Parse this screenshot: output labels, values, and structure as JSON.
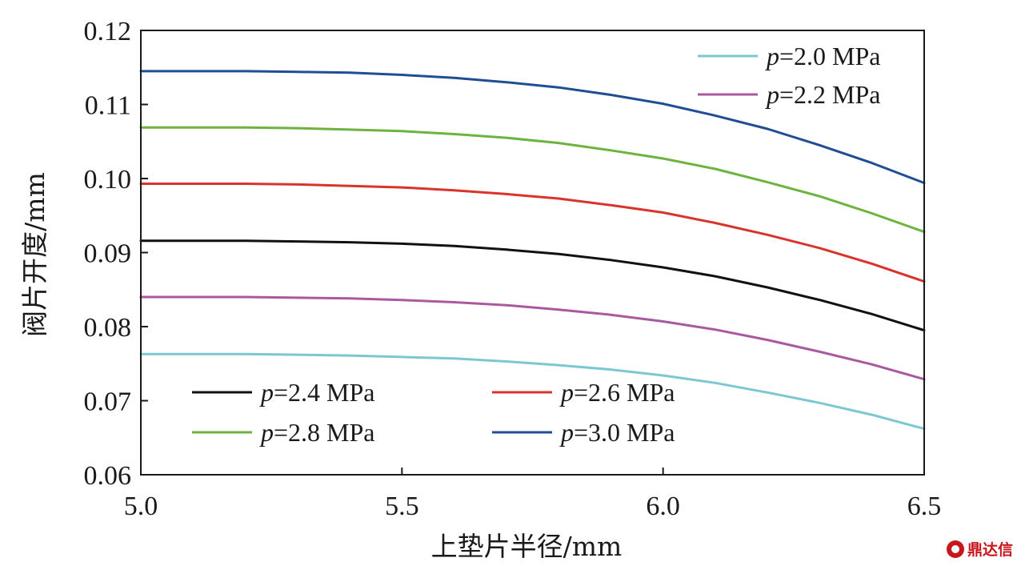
{
  "chart_data": {
    "type": "line",
    "xlabel": "上垫片半径/mm",
    "ylabel": "阀片开度/mm",
    "xlim": [
      5.0,
      6.5
    ],
    "ylim": [
      0.06,
      0.12
    ],
    "xticks": [
      "5.0",
      "5.5",
      "6.0",
      "6.5"
    ],
    "yticks": [
      "0.06",
      "0.07",
      "0.08",
      "0.09",
      "0.10",
      "0.11",
      "0.12"
    ],
    "x": [
      5.0,
      5.1,
      5.2,
      5.3,
      5.4,
      5.5,
      5.6,
      5.7,
      5.8,
      5.9,
      6.0,
      6.1,
      6.2,
      6.3,
      6.4,
      6.5
    ],
    "series": [
      {
        "name": "p=2.0 MPa",
        "name_var": "p",
        "name_rest": "=2.0 MPa",
        "color": "#7cc8d2",
        "values": [
          0.0763,
          0.0763,
          0.0763,
          0.0762,
          0.0761,
          0.0759,
          0.0757,
          0.0753,
          0.0748,
          0.0742,
          0.0734,
          0.0724,
          0.0711,
          0.0697,
          0.0681,
          0.0662
        ]
      },
      {
        "name": "p=2.2 MPa",
        "name_var": "p",
        "name_rest": "=2.2 MPa",
        "color": "#a9599e",
        "values": [
          0.084,
          0.084,
          0.084,
          0.0839,
          0.0838,
          0.0836,
          0.0833,
          0.0829,
          0.0823,
          0.0816,
          0.0807,
          0.0796,
          0.0782,
          0.0766,
          0.0749,
          0.0729
        ]
      },
      {
        "name": "p=2.4 MPa",
        "name_var": "p",
        "name_rest": "=2.4 MPa",
        "color": "#111111",
        "values": [
          0.0916,
          0.0916,
          0.0916,
          0.0915,
          0.0914,
          0.0912,
          0.0909,
          0.0904,
          0.0898,
          0.089,
          0.088,
          0.0868,
          0.0853,
          0.0836,
          0.0817,
          0.0795
        ]
      },
      {
        "name": "p=2.6 MPa",
        "name_var": "p",
        "name_rest": "=2.6 MPa",
        "color": "#d9342b",
        "values": [
          0.0993,
          0.0993,
          0.0993,
          0.0992,
          0.099,
          0.0988,
          0.0984,
          0.0979,
          0.0973,
          0.0964,
          0.0954,
          0.094,
          0.0924,
          0.0906,
          0.0885,
          0.0861
        ]
      },
      {
        "name": "p=2.8 MPa",
        "name_var": "p",
        "name_rest": "=2.8 MPa",
        "color": "#6cb33f",
        "values": [
          0.1069,
          0.1069,
          0.1069,
          0.1068,
          0.1066,
          0.1064,
          0.106,
          0.1055,
          0.1048,
          0.1038,
          0.1027,
          0.1013,
          0.0995,
          0.0976,
          0.0953,
          0.0928
        ]
      },
      {
        "name": "p=3.0 MPa",
        "name_var": "p",
        "name_rest": "=3.0 MPa",
        "color": "#1f4e94",
        "values": [
          0.1145,
          0.1145,
          0.1145,
          0.1144,
          0.1143,
          0.114,
          0.1136,
          0.113,
          0.1123,
          0.1113,
          0.1101,
          0.1085,
          0.1067,
          0.1045,
          0.1021,
          0.0994
        ]
      }
    ],
    "legends": [
      {
        "placement": "top-right",
        "columns": 1,
        "series": [
          0,
          1
        ]
      },
      {
        "placement": "bottom-left",
        "columns": 2,
        "series": [
          2,
          3,
          4,
          5
        ]
      }
    ],
    "grid": false
  },
  "watermark": {
    "text": "鼎达信"
  }
}
